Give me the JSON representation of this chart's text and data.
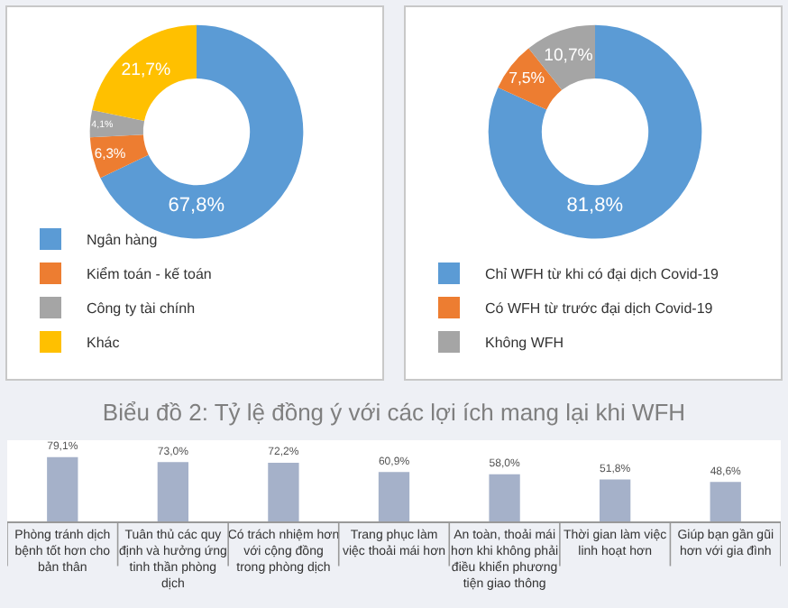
{
  "chart_data": [
    {
      "type": "donut",
      "categories": [
        "Ngân hàng",
        "Kiểm toán - kế toán",
        "Công ty tài chính",
        "Khác"
      ],
      "values": [
        67.8,
        6.3,
        4.1,
        21.7
      ],
      "value_labels": [
        "67,8%",
        "6,3%",
        "4,1%",
        "21,7%"
      ],
      "colors": [
        "#5b9bd5",
        "#ed7d31",
        "#a5a5a5",
        "#ffc000"
      ],
      "legend": "bottom"
    },
    {
      "type": "donut",
      "categories": [
        "Chỉ WFH từ khi có đại dịch Covid-19",
        "Có WFH từ trước đại dịch Covid-19",
        "Không WFH"
      ],
      "values": [
        81.8,
        7.5,
        10.7
      ],
      "value_labels": [
        "81,8%",
        "7,5%",
        "10,7%"
      ],
      "colors": [
        "#5b9bd5",
        "#ed7d31",
        "#a5a5a5"
      ],
      "legend": "bottom"
    },
    {
      "type": "bar",
      "title": "Biểu đồ 2: Tỷ lệ đồng ý với các lợi ích mang lại khi WFH",
      "categories": [
        "Phòng tránh dịch bệnh tốt hơn cho bản thân",
        "Tuân thủ các quy định và hưởng ứng tinh thần phòng dịch",
        "Có trách nhiệm hơn với cộng đồng trong phòng dịch",
        "Trang phục làm việc thoải mái hơn",
        "An toàn, thoải mái hơn khi không phải điều khiển phương tiện giao thông",
        "Thời gian làm việc linh hoạt hơn",
        "Giúp bạn gần gũi hơn với gia đình"
      ],
      "values": [
        79.1,
        73.0,
        72.2,
        60.9,
        58.0,
        51.8,
        48.6
      ],
      "value_labels": [
        "79,1%",
        "73,0%",
        "72,2%",
        "60,9%",
        "58,0%",
        "51,8%",
        "48,6%"
      ],
      "color": "#a5b1c9",
      "ylim": [
        0,
        100
      ],
      "tick_labels": "x"
    }
  ]
}
